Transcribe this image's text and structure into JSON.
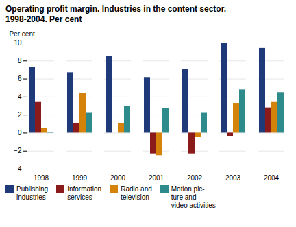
{
  "chart_data": {
    "type": "bar",
    "title": "Operating profit margin. Industries in the content sector.",
    "subtitle": "1998-2004. Per cent",
    "ylabel": "Per cent",
    "categories": [
      "1998",
      "1999",
      "2000",
      "2001",
      "2002",
      "2003",
      "2004"
    ],
    "series": [
      {
        "name": "Publishing\nindustries",
        "color": "#1e3a78",
        "values": [
          7.3,
          6.7,
          8.5,
          6.1,
          7.1,
          10.0,
          9.4
        ]
      },
      {
        "name": "Information\nservices",
        "color": "#8b1a1a",
        "values": [
          3.4,
          1.1,
          0.0,
          -2.3,
          -2.3,
          -0.4,
          2.8
        ]
      },
      {
        "name": "Radio and\ntelevision",
        "color": "#d4820a",
        "values": [
          0.5,
          4.4,
          1.1,
          -2.5,
          -0.5,
          3.3,
          3.4
        ]
      },
      {
        "name": "Motion pic-\nture and\nvideo activities",
        "color": "#2e8b8b",
        "values": [
          0.1,
          2.2,
          3.0,
          2.7,
          2.2,
          4.8,
          4.5
        ]
      }
    ],
    "ylim": [
      -4,
      10
    ],
    "yticks": [
      -4,
      -2,
      0,
      2,
      4,
      6,
      8,
      10
    ],
    "grid": true,
    "legend": "lower left"
  }
}
